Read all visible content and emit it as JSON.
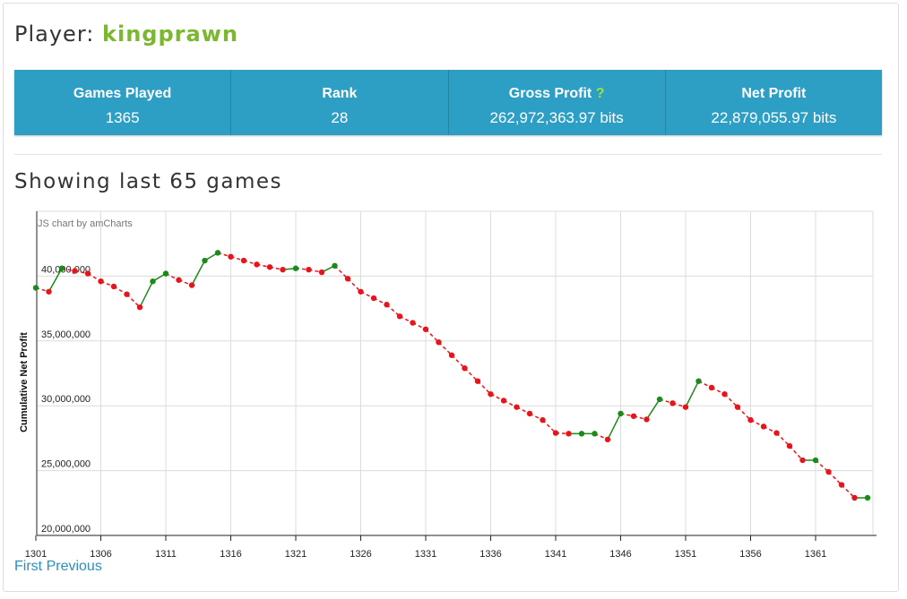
{
  "player": {
    "label": "Player:",
    "name": "kingprawn"
  },
  "stats": [
    {
      "label": "Games Played",
      "value": "1365"
    },
    {
      "label": "Rank",
      "value": "28"
    },
    {
      "label": "Gross Profit",
      "help": "?",
      "value": "262,972,363.97 bits"
    },
    {
      "label": "Net Profit",
      "value": "22,879,055.97 bits"
    }
  ],
  "games_title": "Showing last 65 games",
  "pager": {
    "first": "First",
    "previous": "Previous"
  },
  "colors": {
    "up": "#1a8a1a",
    "down": "#e8141b",
    "accent": "#2e9fc4",
    "player_name": "#7cb82f"
  },
  "chart_data": {
    "type": "line",
    "credit": "JS chart by amCharts",
    "ylabel": "Cumulative Net Profit",
    "xlim": [
      1301,
      1365
    ],
    "ylim": [
      20000000,
      45000000
    ],
    "xticks": [
      1301,
      1306,
      1311,
      1316,
      1321,
      1326,
      1331,
      1336,
      1341,
      1346,
      1351,
      1356,
      1361
    ],
    "yticks": [
      20000000,
      25000000,
      30000000,
      35000000,
      40000000
    ],
    "ytick_labels": [
      "20,000,000",
      "25,000,000",
      "30,000,000",
      "35,000,000",
      "40,000,000"
    ],
    "x": [
      1301,
      1302,
      1303,
      1304,
      1305,
      1306,
      1307,
      1308,
      1309,
      1310,
      1311,
      1312,
      1313,
      1314,
      1315,
      1316,
      1317,
      1318,
      1319,
      1320,
      1321,
      1322,
      1323,
      1324,
      1325,
      1326,
      1327,
      1328,
      1329,
      1330,
      1331,
      1332,
      1333,
      1334,
      1335,
      1336,
      1337,
      1338,
      1339,
      1340,
      1341,
      1342,
      1343,
      1344,
      1345,
      1346,
      1347,
      1348,
      1349,
      1350,
      1351,
      1352,
      1353,
      1354,
      1355,
      1356,
      1357,
      1358,
      1359,
      1360,
      1361,
      1362,
      1363,
      1364,
      1365
    ],
    "y": [
      39100000,
      38800000,
      40600000,
      40400000,
      40200000,
      39600000,
      39200000,
      38600000,
      37600000,
      39600000,
      40200000,
      39700000,
      39300000,
      41200000,
      41800000,
      41500000,
      41200000,
      40900000,
      40700000,
      40500000,
      40600000,
      40500000,
      40300000,
      40800000,
      39800000,
      38800000,
      38300000,
      37800000,
      36900000,
      36400000,
      35900000,
      34900000,
      33900000,
      32900000,
      31900000,
      30900000,
      30400000,
      29900000,
      29400000,
      28900000,
      27900000,
      27850000,
      27850000,
      27850000,
      27400000,
      29400000,
      29200000,
      28950000,
      30500000,
      30200000,
      29900000,
      31900000,
      31400000,
      30900000,
      29900000,
      28900000,
      28400000,
      27900000,
      26900000,
      25800000,
      25800000,
      24900000,
      23900000,
      22900000,
      22900000
    ]
  }
}
